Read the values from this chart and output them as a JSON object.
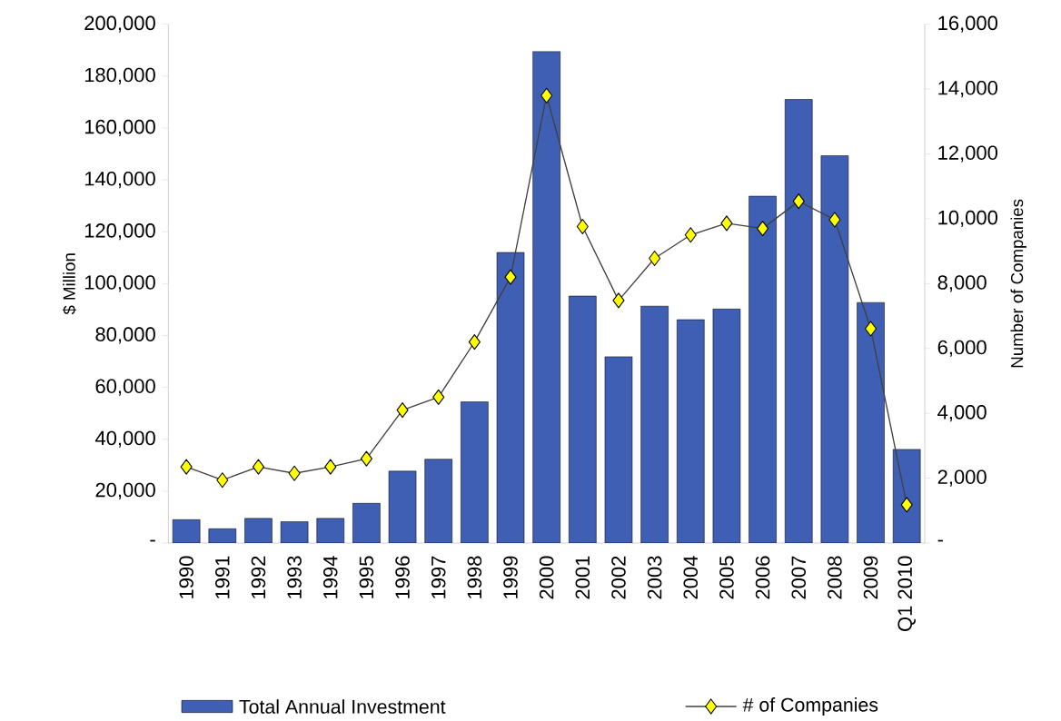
{
  "chart_data": {
    "type": "bar",
    "categories": [
      "1990",
      "1991",
      "1992",
      "1993",
      "1994",
      "1995",
      "1996",
      "1997",
      "1998",
      "1999",
      "2000",
      "2001",
      "2002",
      "2003",
      "2004",
      "2005",
      "2006",
      "2007",
      "2008",
      "2009",
      "Q1 2010"
    ],
    "ylabel": "$ Million",
    "y2label": "Number of Companies",
    "series": [
      {
        "name": "Total Annual Investment",
        "color": "#3f5fb5",
        "values": [
          9000,
          5500,
          9500,
          8200,
          9500,
          15300,
          27700,
          32300,
          54400,
          112000,
          189500,
          95200,
          71800,
          91300,
          86100,
          90200,
          133700,
          171000,
          149300,
          92700,
          36100
        ]
      },
      {
        "name": "# of Companies",
        "type": "line",
        "axis": "y2",
        "color": "#ffff00",
        "values": [
          2350,
          1940,
          2350,
          2150,
          2350,
          2600,
          4100,
          4500,
          6200,
          8200,
          13800,
          9760,
          7480,
          8780,
          9500,
          9860,
          9700,
          10540,
          9970,
          6610,
          1180
        ]
      }
    ],
    "ylim": [
      0,
      200000
    ],
    "yticks": [
      {
        "value": 0,
        "label": "-"
      },
      {
        "value": 20000,
        "label": "20,000"
      },
      {
        "value": 40000,
        "label": "40,000"
      },
      {
        "value": 60000,
        "label": "60,000"
      },
      {
        "value": 80000,
        "label": "80,000"
      },
      {
        "value": 100000,
        "label": "100,000"
      },
      {
        "value": 120000,
        "label": "120,000"
      },
      {
        "value": 140000,
        "label": "140,000"
      },
      {
        "value": 160000,
        "label": "160,000"
      },
      {
        "value": 180000,
        "label": "180,000"
      },
      {
        "value": 200000,
        "label": "200,000"
      }
    ],
    "y2lim": [
      0,
      16000
    ],
    "y2ticks": [
      {
        "value": 0,
        "label": "-"
      },
      {
        "value": 2000,
        "label": "2,000"
      },
      {
        "value": 4000,
        "label": "4,000"
      },
      {
        "value": 6000,
        "label": "6,000"
      },
      {
        "value": 8000,
        "label": "8,000"
      },
      {
        "value": 10000,
        "label": "10,000"
      },
      {
        "value": 12000,
        "label": "12,000"
      },
      {
        "value": 14000,
        "label": "14,000"
      },
      {
        "value": 16000,
        "label": "16,000"
      }
    ],
    "grid": false,
    "legend": "bottom",
    "marker": "diamond",
    "line_style": "solid"
  }
}
